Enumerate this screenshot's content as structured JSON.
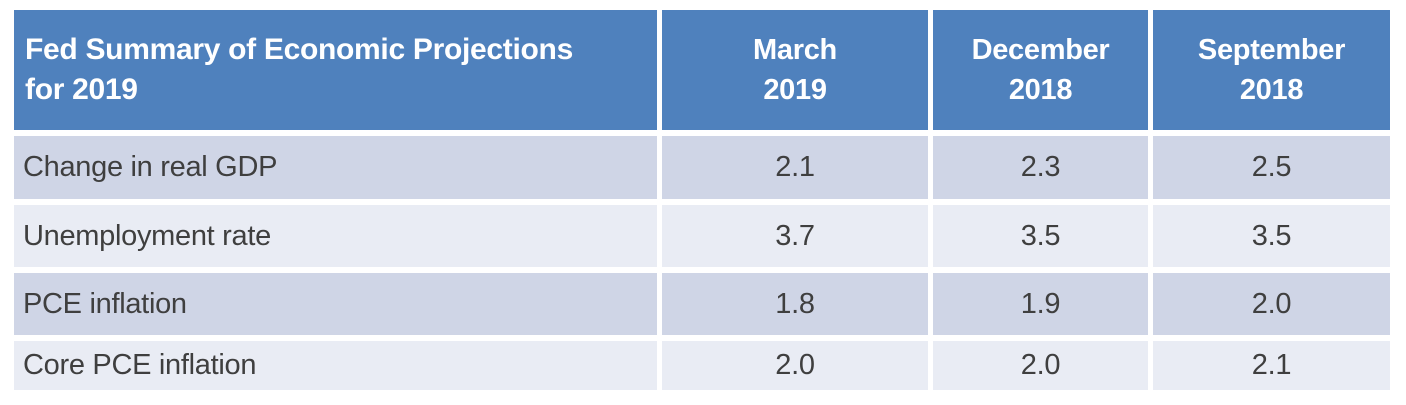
{
  "table": {
    "title_lines": [
      "Fed Summary of Economic Projections",
      "for 2019"
    ],
    "columns": [
      [
        "March",
        "2019"
      ],
      [
        "December",
        "2018"
      ],
      [
        "September",
        "2018"
      ]
    ],
    "rows": [
      {
        "label": "Change in real GDP",
        "values": [
          "2.1",
          "2.3",
          "2.5"
        ]
      },
      {
        "label": "Unemployment rate",
        "values": [
          "3.7",
          "3.5",
          "3.5"
        ]
      },
      {
        "label": "PCE inflation",
        "values": [
          "1.8",
          "1.9",
          "2.0"
        ]
      },
      {
        "label": "Core PCE inflation",
        "values": [
          "2.0",
          "2.0",
          "2.1"
        ]
      }
    ]
  },
  "colors": {
    "page_bg": "#FFFFFF",
    "header_bg": "#4F81BD",
    "header_text": "#FFFFFF",
    "row_band_dark": "#CFD5E6",
    "row_band_light": "#E9ECF4",
    "body_text": "#3F3F3F"
  },
  "chart_data": {
    "type": "table",
    "title": "Fed Summary of Economic Projections for 2019",
    "columns": [
      "March 2019",
      "December 2018",
      "September 2018"
    ],
    "row_labels": [
      "Change in real GDP",
      "Unemployment rate",
      "PCE inflation",
      "Core PCE inflation"
    ],
    "values": [
      [
        2.1,
        2.3,
        2.5
      ],
      [
        3.7,
        3.5,
        3.5
      ],
      [
        1.8,
        1.9,
        2.0
      ],
      [
        2.0,
        2.0,
        2.1
      ]
    ]
  }
}
